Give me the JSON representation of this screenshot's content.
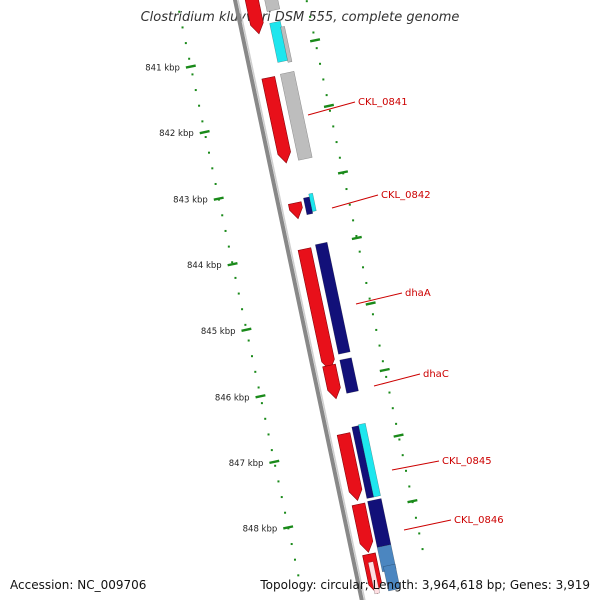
{
  "title": "Clostridium kluyveri DSM 555, complete genome",
  "accession_text": "Accession: NC_009706",
  "summary_text": "Topology: circular; Length: 3,964,618 bp; Genes: 3,919",
  "colors": {
    "backbone": "#888888",
    "tick": "#1a8a1a",
    "label": "#cc0000",
    "red": "#e8101a",
    "navy": "#121079",
    "cyan": "#1ee6ee",
    "gray": "#bdbdbd",
    "steel": "#4b86c0"
  },
  "kbp_ticks": [
    "841 kbp",
    "842 kbp",
    "843 kbp",
    "844 kbp",
    "845 kbp",
    "846 kbp",
    "847 kbp",
    "848 kbp"
  ],
  "gene_labels": [
    "CKL_0841",
    "CKL_0842",
    "dhaA",
    "dhaC",
    "CKL_0845",
    "CKL_0846"
  ]
}
